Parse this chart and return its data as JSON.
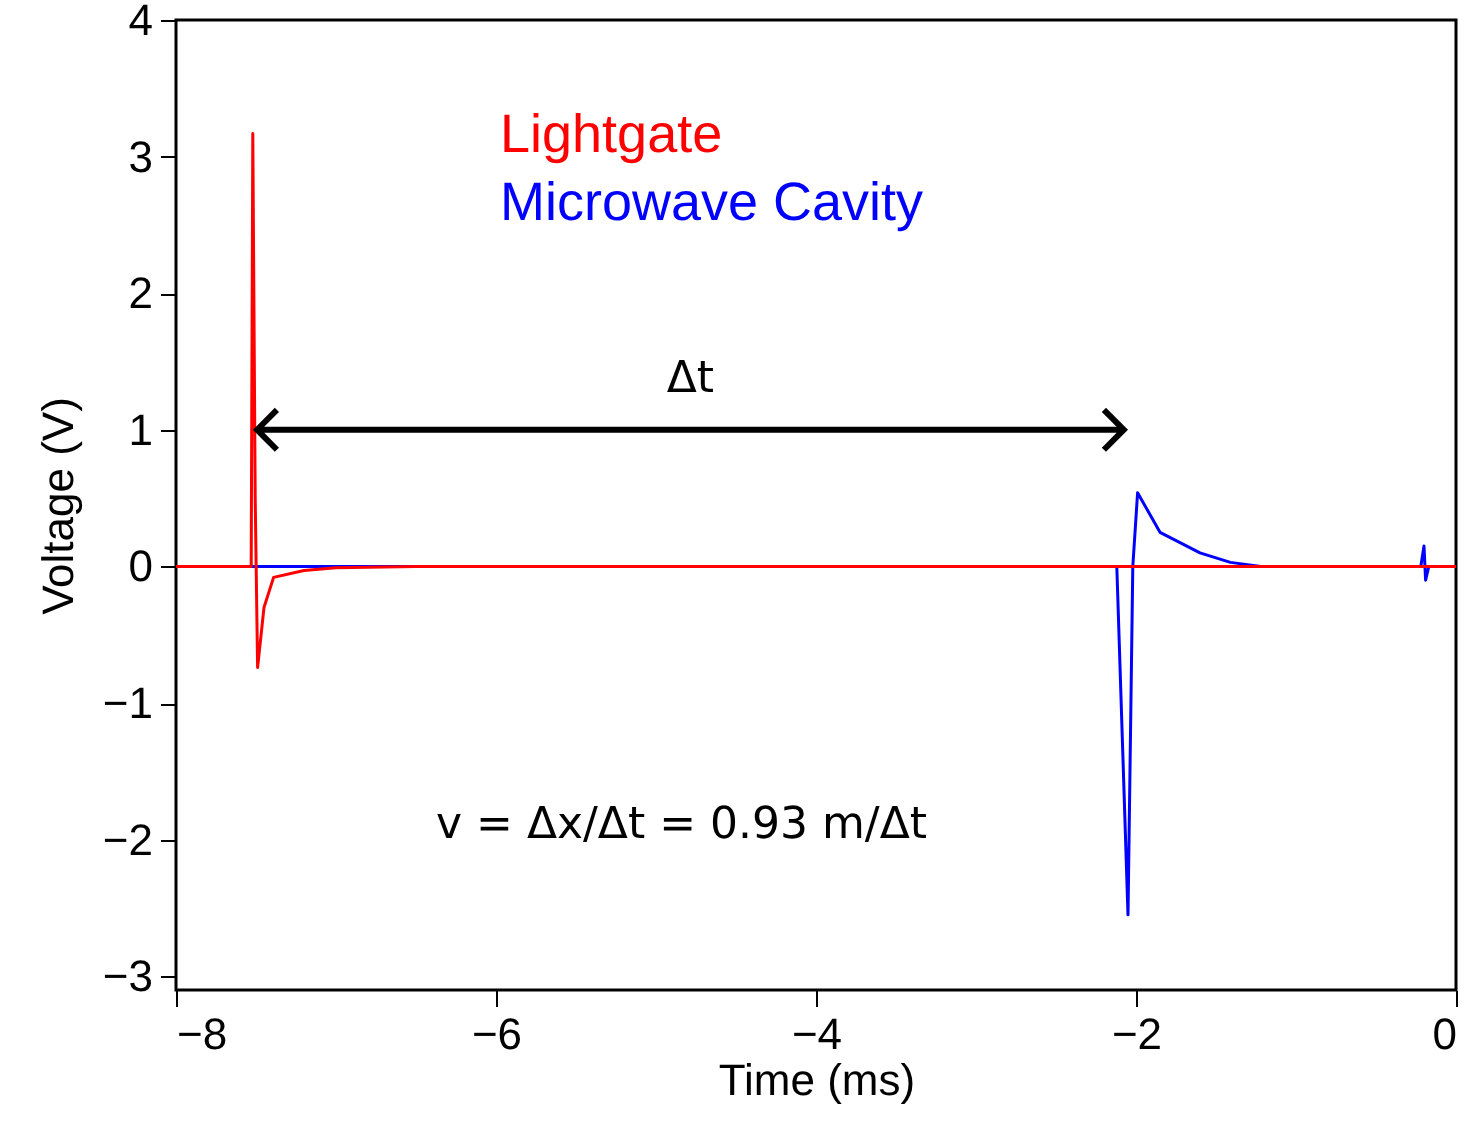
{
  "chart_data": {
    "type": "line",
    "xlabel": "Time (ms)",
    "ylabel": "Voltage (V)",
    "xlim": [
      -8,
      0
    ],
    "xticks": [
      -8,
      -6,
      -4,
      -2,
      0
    ],
    "ylim": [
      -3.1,
      4
    ],
    "yticks": [
      -3,
      -2,
      -1,
      0,
      1,
      2,
      3,
      4
    ],
    "grid": false,
    "legend": "top",
    "line_style": "solid",
    "annotations": [
      "Δt",
      "v = Δx/Δt = 0.93 m/Δt"
    ],
    "series": [
      {
        "name": "Microwave Cavity",
        "color": "#0000ff",
        "x": [
          -8,
          -2.12,
          -2.05,
          -2.02,
          -1.99,
          -1.85,
          -1.6,
          -1.41,
          -1.22,
          -0.22,
          -0.2,
          -0.19,
          -0.17,
          0
        ],
        "values": [
          0,
          0,
          -2.55,
          0,
          0.54,
          0.25,
          0.1,
          0.03,
          0,
          0,
          0.15,
          -0.1,
          0,
          0
        ]
      },
      {
        "name": "Lightgate",
        "color": "#ff0000",
        "x": [
          -8,
          -7.53,
          -7.52,
          -7.505,
          -7.49,
          -7.45,
          -7.39,
          -7.2,
          -7,
          -6.5,
          0
        ],
        "values": [
          0,
          0,
          3.17,
          0.5,
          -0.74,
          -0.3,
          -0.08,
          -0.03,
          -0.01,
          0,
          0
        ]
      }
    ]
  }
}
